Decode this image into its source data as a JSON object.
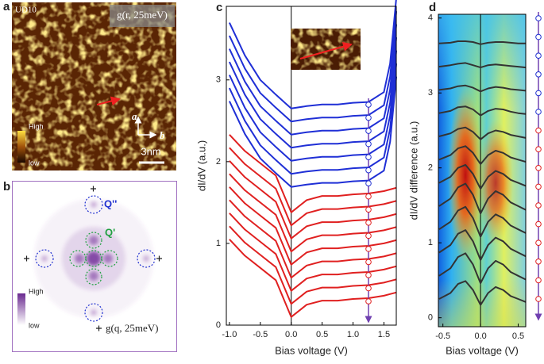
{
  "panels": {
    "a": {
      "label": "a",
      "sample": "UD10",
      "map": "g(r, 25meV)",
      "cbar_high": "High",
      "cbar_low": "low",
      "axis_a": "a",
      "axis_b": "b",
      "scale": "3nm"
    },
    "b": {
      "label": "b",
      "q2": "Q''",
      "q1": "Q'",
      "cbar_high": "High",
      "cbar_low": "low",
      "map": "g(q, 25meV)"
    }
  },
  "chart_data": [
    {
      "type": "line",
      "label": "c",
      "xlabel": "Bias voltage (V)",
      "ylabel": "dI/dV (a.u.)",
      "xlim": [
        -1.05,
        1.7
      ],
      "ylim": [
        0,
        3.9
      ],
      "xticks": [
        {
          "value": -1.0,
          "label": "-1.0"
        },
        -0.5,
        {
          "value": 0,
          "label": "0.0"
        },
        0.5,
        {
          "value": 1,
          "label": "1.0"
        },
        1.5
      ],
      "yticks": [
        0,
        1,
        2,
        3
      ],
      "zero_line": true,
      "x": [
        -1.0,
        -0.75,
        -0.5,
        -0.25,
        0,
        0.25,
        0.5,
        0.75,
        1.0,
        1.25,
        1.5,
        1.6,
        1.7
      ],
      "series": [
        {
          "color": "#1f2fd6",
          "values": [
            3.7,
            3.3,
            3.0,
            2.82,
            2.65,
            2.68,
            2.7,
            2.7,
            2.72,
            2.73,
            2.85,
            3.2,
            4.0
          ]
        },
        {
          "color": "#1f2fd6",
          "values": [
            3.54,
            3.14,
            2.84,
            2.66,
            2.49,
            2.52,
            2.54,
            2.54,
            2.56,
            2.57,
            2.69,
            3.04,
            3.84
          ]
        },
        {
          "color": "#1f2fd6",
          "values": [
            3.38,
            2.98,
            2.68,
            2.5,
            2.33,
            2.36,
            2.38,
            2.38,
            2.4,
            2.41,
            2.53,
            2.88,
            3.68
          ]
        },
        {
          "color": "#1f2fd6",
          "values": [
            3.22,
            2.82,
            2.52,
            2.34,
            2.17,
            2.2,
            2.22,
            2.22,
            2.24,
            2.25,
            2.37,
            2.72,
            3.52
          ]
        },
        {
          "color": "#1f2fd6",
          "values": [
            3.06,
            2.66,
            2.36,
            2.18,
            2.01,
            2.04,
            2.06,
            2.06,
            2.08,
            2.09,
            2.21,
            2.56,
            3.36
          ]
        },
        {
          "color": "#1f2fd6",
          "values": [
            2.9,
            2.5,
            2.2,
            2.02,
            1.85,
            1.88,
            1.9,
            1.9,
            1.92,
            1.93,
            2.05,
            2.4,
            3.2
          ]
        },
        {
          "color": "#1f2fd6",
          "values": [
            2.74,
            2.34,
            2.04,
            1.86,
            1.69,
            1.72,
            1.74,
            1.74,
            1.76,
            1.77,
            1.89,
            2.24,
            3.04
          ]
        },
        {
          "color": "#e02020",
          "values": [
            2.33,
            2.13,
            1.98,
            1.83,
            1.38,
            1.53,
            1.58,
            1.58,
            1.6,
            1.61,
            1.64,
            1.66,
            1.68
          ]
        },
        {
          "color": "#e02020",
          "values": [
            2.17,
            1.97,
            1.82,
            1.67,
            1.22,
            1.37,
            1.42,
            1.42,
            1.44,
            1.45,
            1.48,
            1.5,
            1.52
          ]
        },
        {
          "color": "#e02020",
          "values": [
            2.01,
            1.81,
            1.66,
            1.51,
            1.06,
            1.21,
            1.26,
            1.26,
            1.28,
            1.29,
            1.32,
            1.34,
            1.36
          ]
        },
        {
          "color": "#e02020",
          "values": [
            1.85,
            1.65,
            1.5,
            1.35,
            0.9,
            1.05,
            1.1,
            1.1,
            1.12,
            1.13,
            1.16,
            1.18,
            1.2
          ]
        },
        {
          "color": "#e02020",
          "values": [
            1.69,
            1.49,
            1.34,
            1.19,
            0.74,
            0.89,
            0.94,
            0.94,
            0.96,
            0.97,
            1.0,
            1.02,
            1.04
          ]
        },
        {
          "color": "#e02020",
          "values": [
            1.53,
            1.33,
            1.18,
            1.03,
            0.58,
            0.73,
            0.78,
            0.78,
            0.8,
            0.81,
            0.84,
            0.86,
            0.88
          ]
        },
        {
          "color": "#e02020",
          "values": [
            1.37,
            1.17,
            1.02,
            0.87,
            0.42,
            0.57,
            0.62,
            0.62,
            0.64,
            0.65,
            0.68,
            0.7,
            0.72
          ]
        },
        {
          "color": "#e02020",
          "values": [
            1.21,
            1.01,
            0.86,
            0.71,
            0.26,
            0.41,
            0.46,
            0.46,
            0.48,
            0.49,
            0.52,
            0.54,
            0.56
          ]
        },
        {
          "color": "#e02020",
          "values": [
            1.05,
            0.85,
            0.7,
            0.55,
            0.1,
            0.25,
            0.3,
            0.3,
            0.32,
            0.33,
            0.36,
            0.38,
            0.4
          ]
        }
      ]
    },
    {
      "type": "line",
      "label": "d",
      "xlabel": "Bias voltage (V)",
      "ylabel": "dI/dV difference (a.u.)",
      "xlim": [
        -0.56,
        0.6
      ],
      "ylim": [
        -0.12,
        4.05
      ],
      "xticks": [
        -0.5,
        {
          "value": 0,
          "label": "0.0"
        },
        0.5
      ],
      "yticks": [
        0,
        1,
        2,
        3,
        4
      ],
      "zero_line": true,
      "colormap": true,
      "x": [
        -0.55,
        -0.4,
        -0.3,
        -0.2,
        -0.1,
        0,
        0.1,
        0.2,
        0.3,
        0.4,
        0.5,
        0.6
      ],
      "series": [
        {
          "color": "#333333",
          "values": [
            0.25,
            0.33,
            0.45,
            0.49,
            0.37,
            0.17,
            0.33,
            0.41,
            0.37,
            0.29,
            0.25,
            0.21
          ]
        },
        {
          "color": "#333333",
          "values": [
            0.56,
            0.66,
            0.81,
            0.86,
            0.71,
            0.46,
            0.66,
            0.76,
            0.71,
            0.61,
            0.56,
            0.51
          ]
        },
        {
          "color": "#333333",
          "values": [
            0.87,
            0.97,
            1.12,
            1.17,
            1.02,
            0.77,
            0.97,
            1.07,
            1.02,
            0.92,
            0.87,
            0.82
          ]
        },
        {
          "color": "#333333",
          "values": [
            1.18,
            1.28,
            1.43,
            1.48,
            1.33,
            1.08,
            1.28,
            1.38,
            1.33,
            1.23,
            1.18,
            1.13
          ]
        },
        {
          "color": "#333333",
          "values": [
            1.49,
            1.59,
            1.74,
            1.79,
            1.64,
            1.39,
            1.59,
            1.69,
            1.64,
            1.54,
            1.49,
            1.44
          ]
        },
        {
          "color": "#333333",
          "values": [
            1.8,
            1.88,
            2.0,
            2.04,
            1.92,
            1.72,
            1.88,
            1.96,
            1.92,
            1.84,
            1.8,
            1.76
          ]
        },
        {
          "color": "#333333",
          "values": [
            2.11,
            2.17,
            2.26,
            2.29,
            2.2,
            2.05,
            2.17,
            2.23,
            2.2,
            2.14,
            2.11,
            2.08
          ]
        },
        {
          "color": "#333333",
          "values": [
            2.42,
            2.46,
            2.52,
            2.54,
            2.48,
            2.38,
            2.46,
            2.5,
            2.48,
            2.44,
            2.42,
            2.4
          ]
        },
        {
          "color": "#333333",
          "values": [
            2.73,
            2.76,
            2.81,
            2.82,
            2.78,
            2.7,
            2.76,
            2.79,
            2.78,
            2.75,
            2.73,
            2.72
          ]
        },
        {
          "color": "#333333",
          "values": [
            3.04,
            3.06,
            3.09,
            3.1,
            3.07,
            3.02,
            3.06,
            3.08,
            3.07,
            3.05,
            3.04,
            3.03
          ]
        },
        {
          "color": "#333333",
          "values": [
            3.35,
            3.37,
            3.39,
            3.4,
            3.37,
            3.34,
            3.37,
            3.38,
            3.37,
            3.36,
            3.35,
            3.34
          ]
        },
        {
          "color": "#333333",
          "values": [
            3.66,
            3.67,
            3.69,
            3.69,
            3.68,
            3.65,
            3.67,
            3.68,
            3.68,
            3.67,
            3.66,
            3.66
          ]
        }
      ]
    }
  ]
}
